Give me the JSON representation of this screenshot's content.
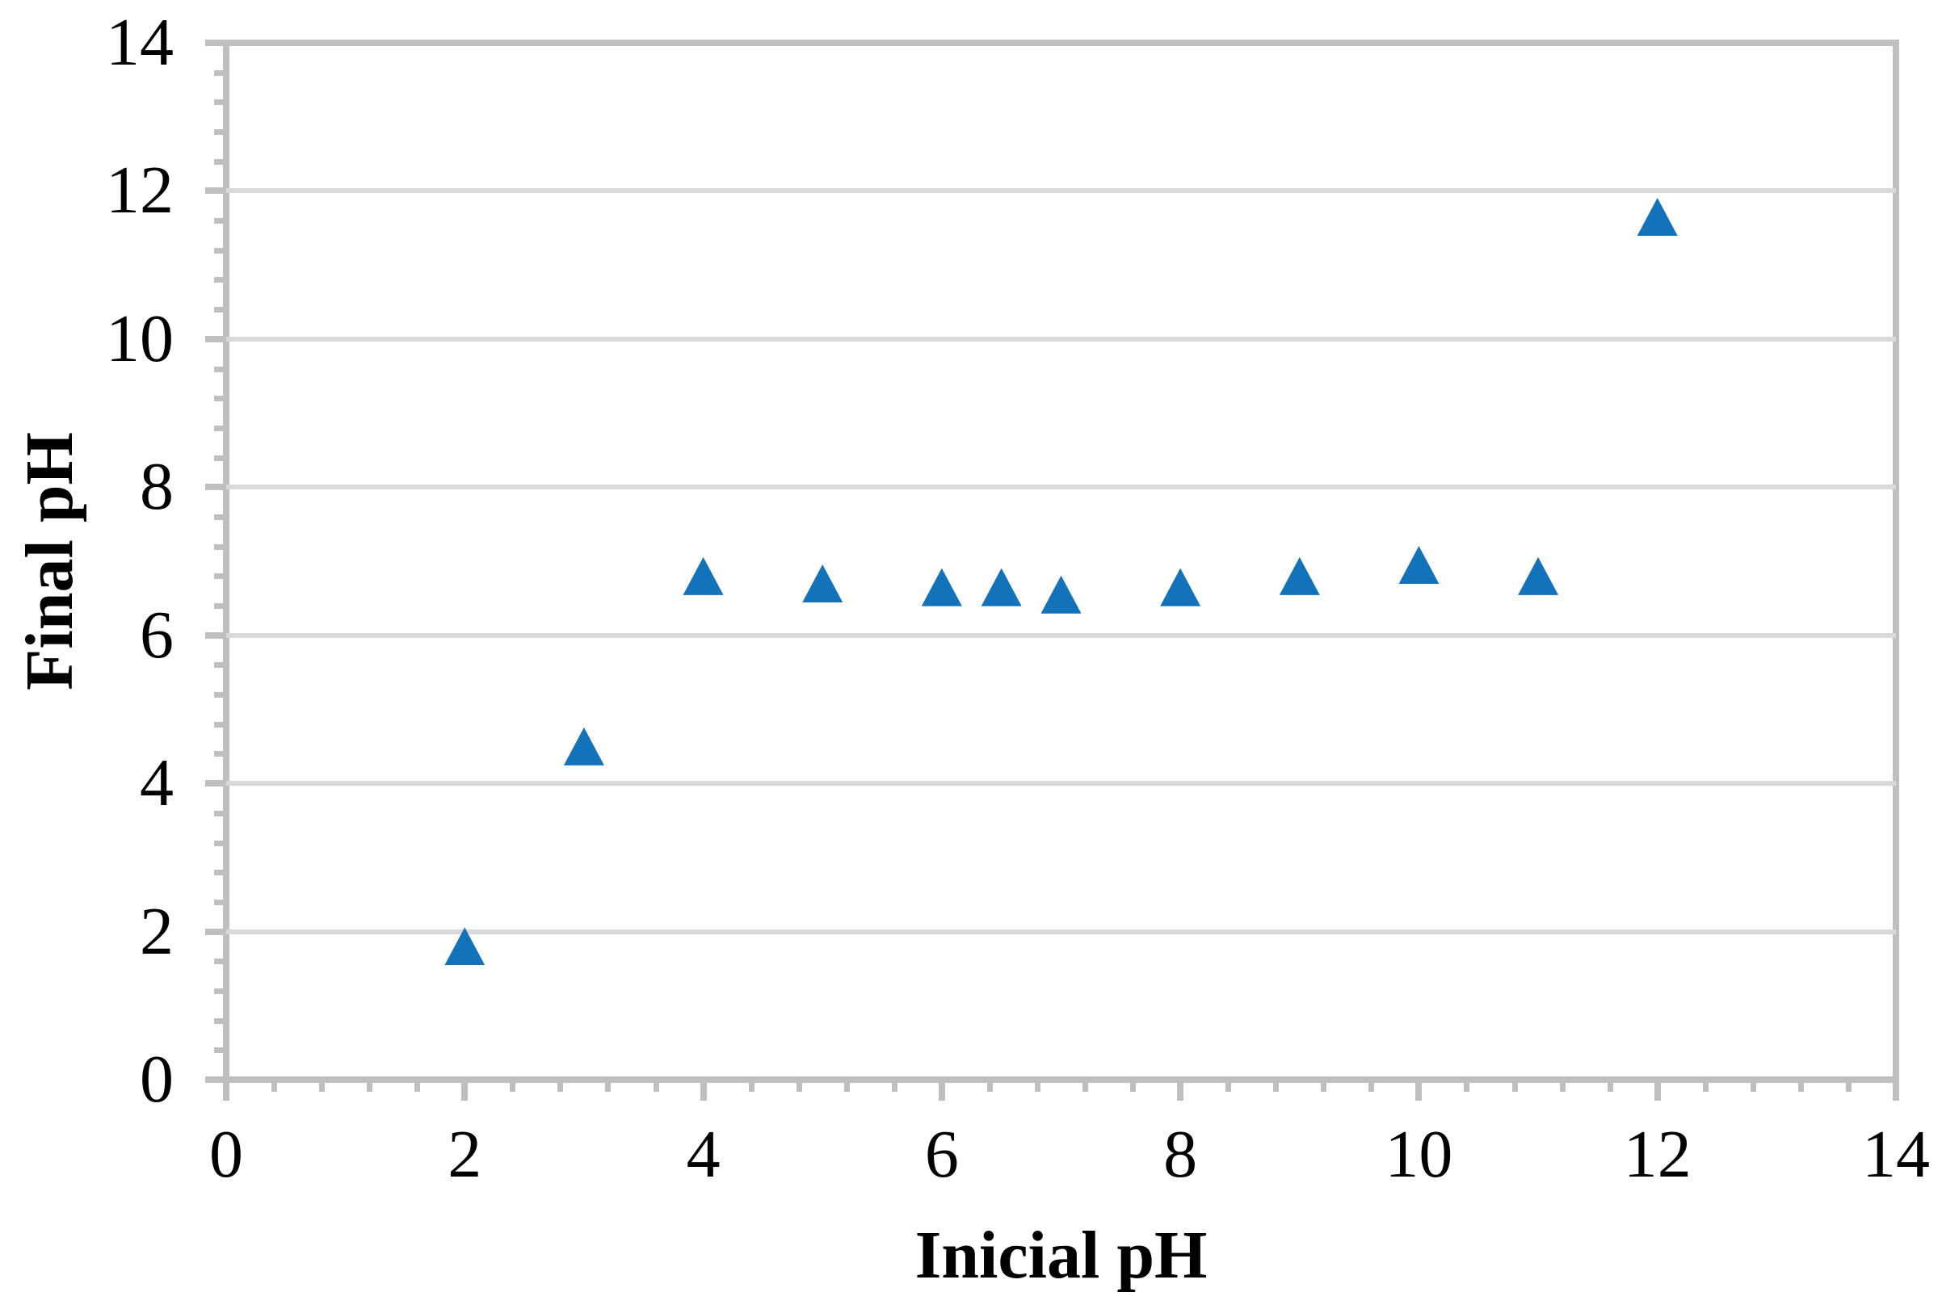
{
  "chart_data": {
    "type": "scatter",
    "title": "",
    "xlabel": "Inicial pH",
    "ylabel": "Final pH",
    "xlim": [
      0,
      14
    ],
    "ylim": [
      0,
      14
    ],
    "x_ticks": [
      0,
      2,
      4,
      6,
      8,
      10,
      12,
      14
    ],
    "y_ticks": [
      0,
      2,
      4,
      6,
      8,
      10,
      12,
      14
    ],
    "x_minor_unit": 0.4,
    "y_minor_unit": 0.4,
    "grid": "horizontal-major-only",
    "legend": "none",
    "marker": {
      "shape": "triangle-up",
      "color": "#1272BA"
    },
    "series": [
      {
        "points": [
          [
            2,
            1.8
          ],
          [
            3,
            4.5
          ],
          [
            4,
            6.8
          ],
          [
            5,
            6.7
          ],
          [
            6,
            6.65
          ],
          [
            6.5,
            6.65
          ],
          [
            7,
            6.55
          ],
          [
            8,
            6.65
          ],
          [
            9,
            6.8
          ],
          [
            10,
            6.95
          ],
          [
            11,
            6.8
          ],
          [
            12,
            11.65
          ]
        ]
      }
    ],
    "colors": {
      "marker": "#1272BA",
      "gridline": "#D9D9D9",
      "axis": "#BFBFBF",
      "text": "#000000",
      "background": "#FFFFFF"
    }
  }
}
